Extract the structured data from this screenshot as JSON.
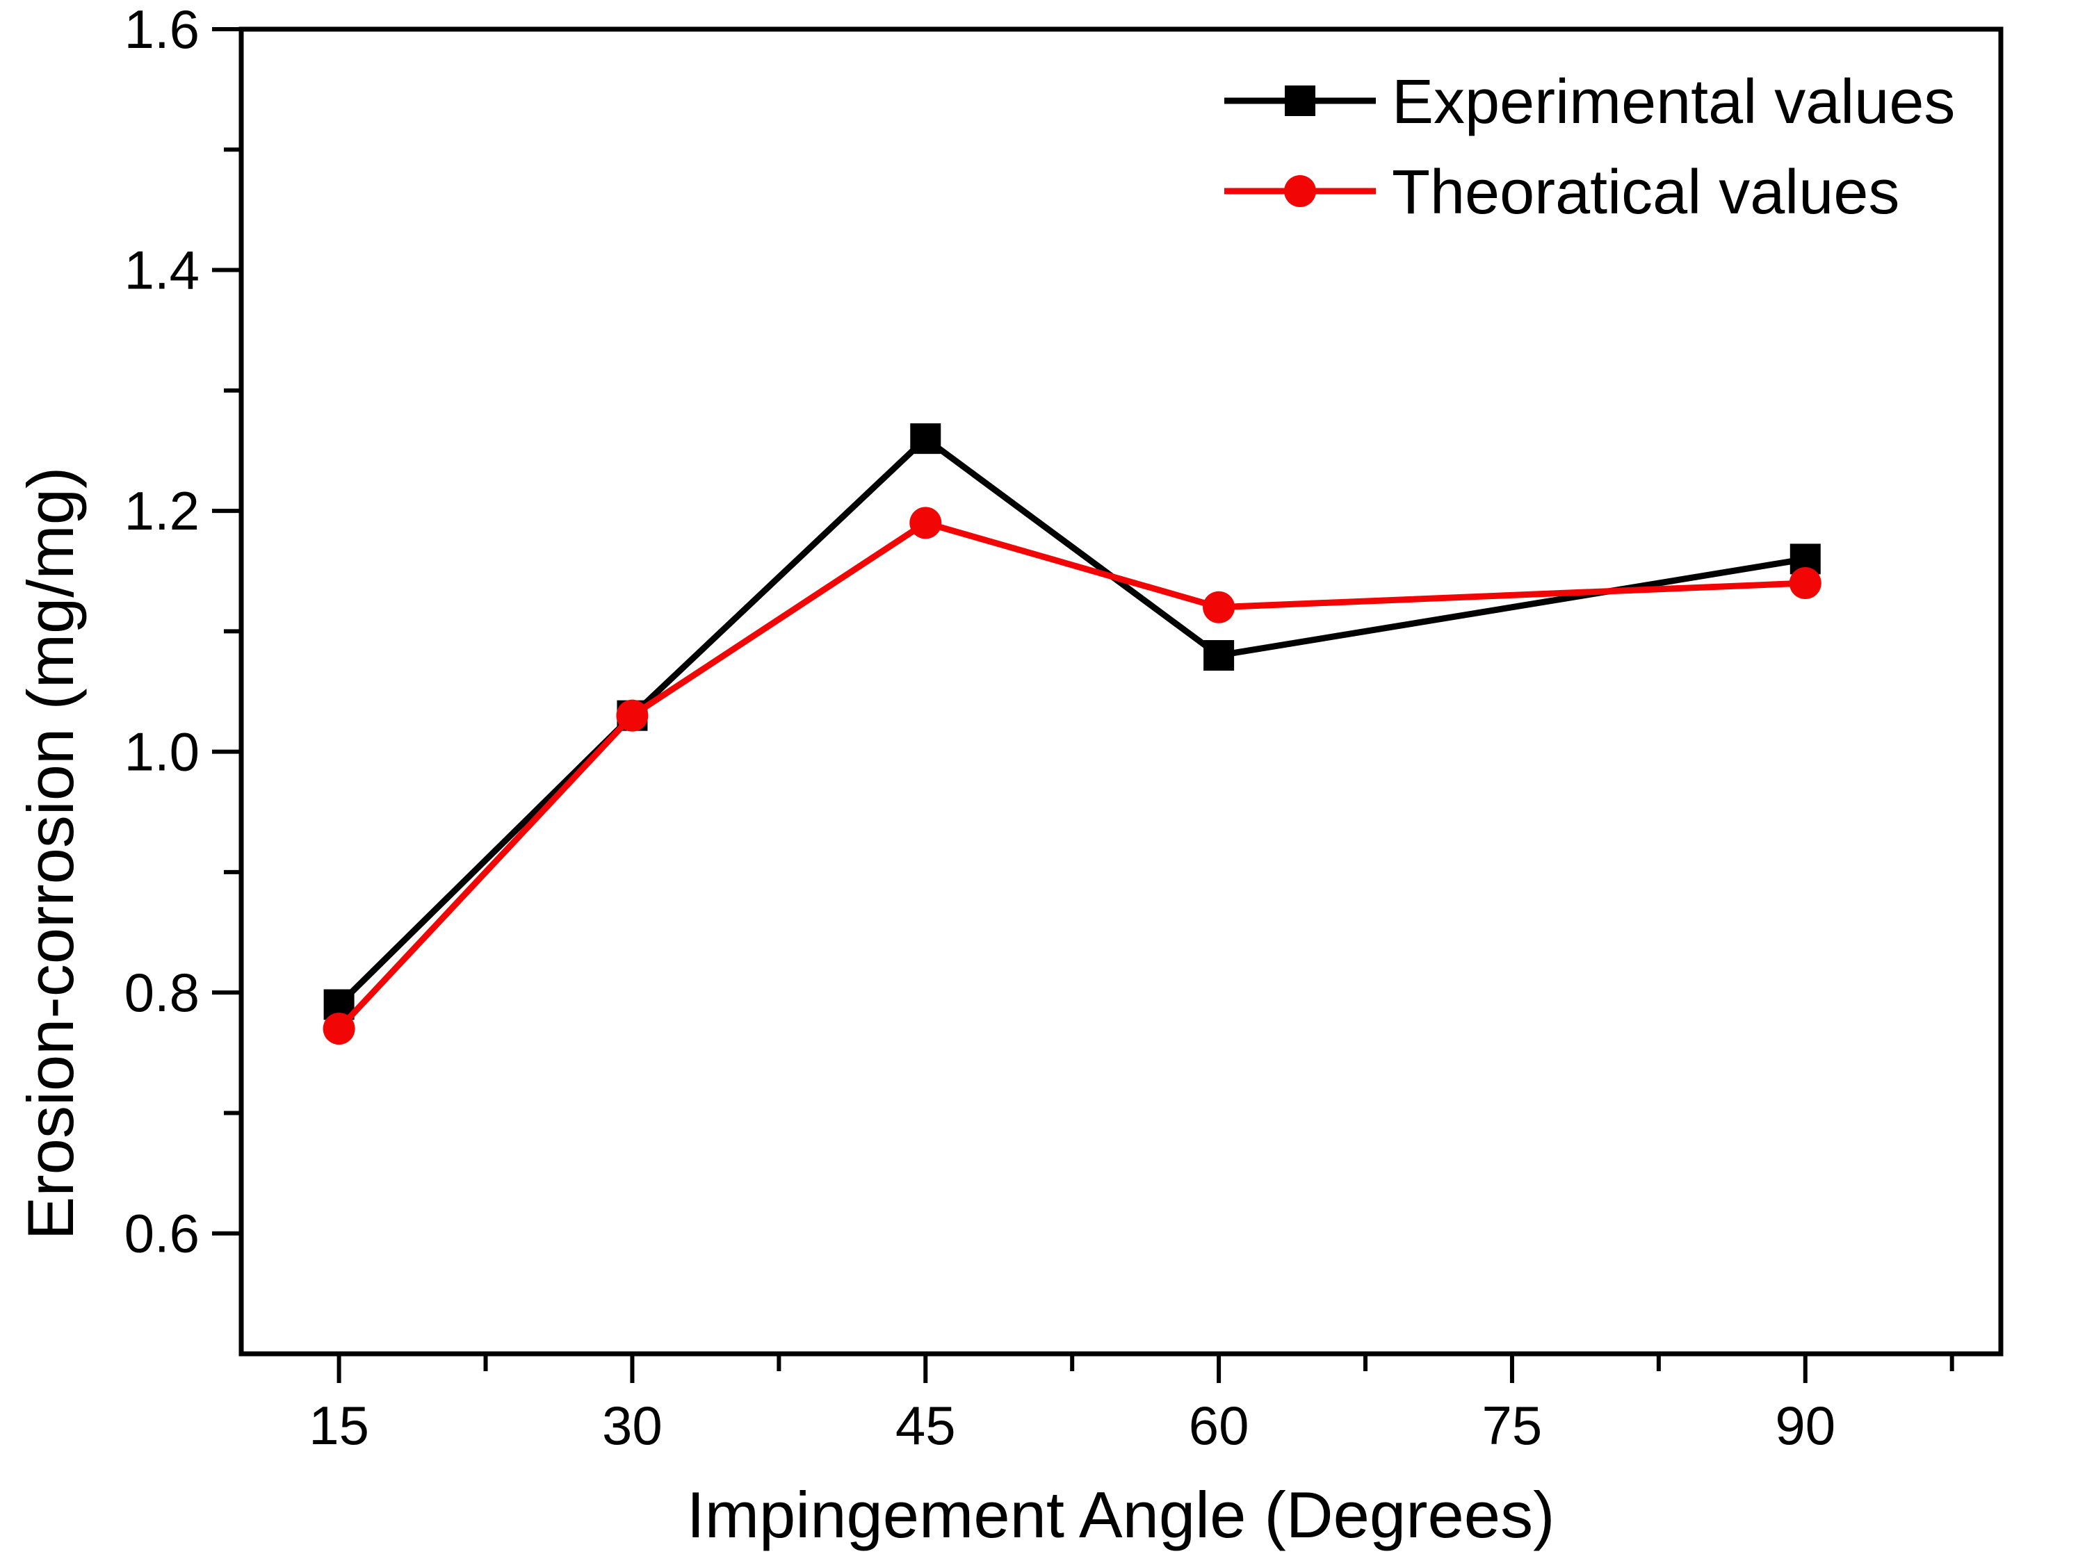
{
  "chart_data": {
    "type": "line",
    "title": "",
    "xlabel": "Impingement Angle (Degrees)",
    "ylabel": "Erosion-corrosion (mg/mg)",
    "x": [
      15,
      30,
      45,
      60,
      90
    ],
    "series": [
      {
        "name": "Experimental values",
        "color": "#000000",
        "marker": "square",
        "values": [
          0.79,
          1.03,
          1.26,
          1.08,
          1.16
        ]
      },
      {
        "name": "Theoratical values",
        "color": "#f20505",
        "marker": "circle",
        "values": [
          0.77,
          1.03,
          1.19,
          1.12,
          1.14
        ]
      }
    ],
    "xlim": [
      10,
      100
    ],
    "ylim": [
      0.5,
      1.6
    ],
    "x_tick_labels": [
      "15",
      "30",
      "45",
      "60",
      "75",
      "90"
    ],
    "x_ticks": [
      15,
      30,
      45,
      60,
      75,
      90
    ],
    "x_minor_ticks": [
      22.5,
      37.5,
      52.5,
      67.5,
      82.5,
      97.5
    ],
    "y_tick_labels": [
      "1.6",
      "1.4",
      "1.2",
      "1.0",
      "0.8",
      "0.6"
    ],
    "y_ticks": [
      1.6,
      1.4,
      1.2,
      1.0,
      0.8,
      0.6
    ],
    "y_minor_ticks": [
      1.5,
      1.3,
      1.1,
      0.9,
      0.7
    ],
    "grid": false,
    "legend_position": "top-right-inside",
    "axis_color": "#000000",
    "background_color": "#ffffff"
  }
}
